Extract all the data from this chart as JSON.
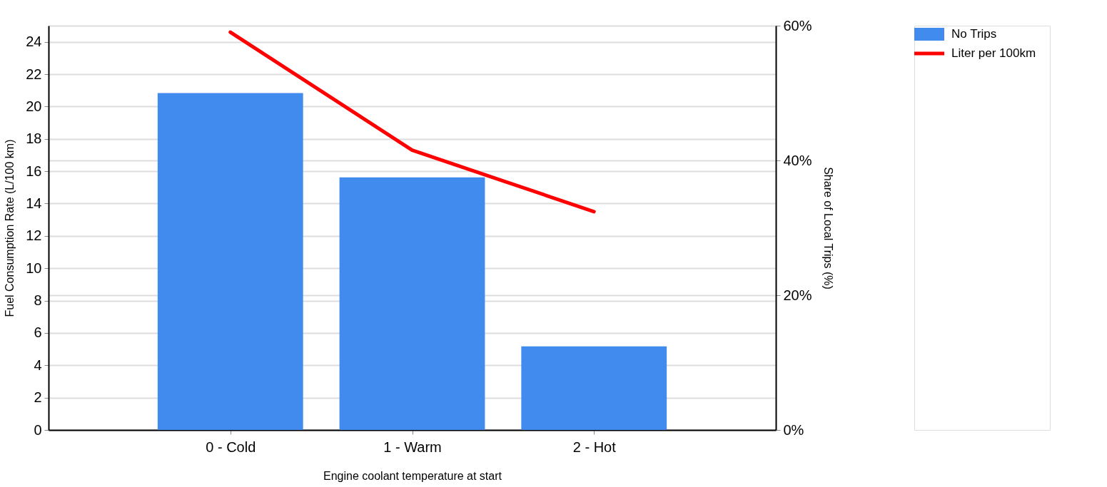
{
  "chart_data": {
    "type": "bar",
    "categories": [
      "0 - Cold",
      "1 - Warm",
      "2 - Hot"
    ],
    "series": [
      {
        "name": "No Trips",
        "type": "bar",
        "axis": "y2",
        "color": "#418bee",
        "values": [
          50,
          37.5,
          12.4
        ]
      },
      {
        "name": "Liter per 100km",
        "type": "line",
        "color": "#ff0000",
        "values": [
          24.6,
          17.3,
          13.5
        ]
      }
    ],
    "xlabel": "Engine coolant temperature at start",
    "ylabel": "Fuel Consumption Rate (L/100 km)",
    "y2label": "Share of Local Trips (%)",
    "ylim": [
      0,
      25
    ],
    "yticks": [
      0,
      2,
      4,
      6,
      8,
      10,
      12,
      14,
      16,
      18,
      20,
      22,
      24
    ],
    "y2lim": [
      0,
      60
    ],
    "y2ticks": [
      {
        "value": 0,
        "label": "0%"
      },
      {
        "value": 20,
        "label": "20%"
      },
      {
        "value": 40,
        "label": "40%"
      },
      {
        "value": 60,
        "label": "60%"
      }
    ],
    "grid": "y",
    "legend": "top right"
  }
}
